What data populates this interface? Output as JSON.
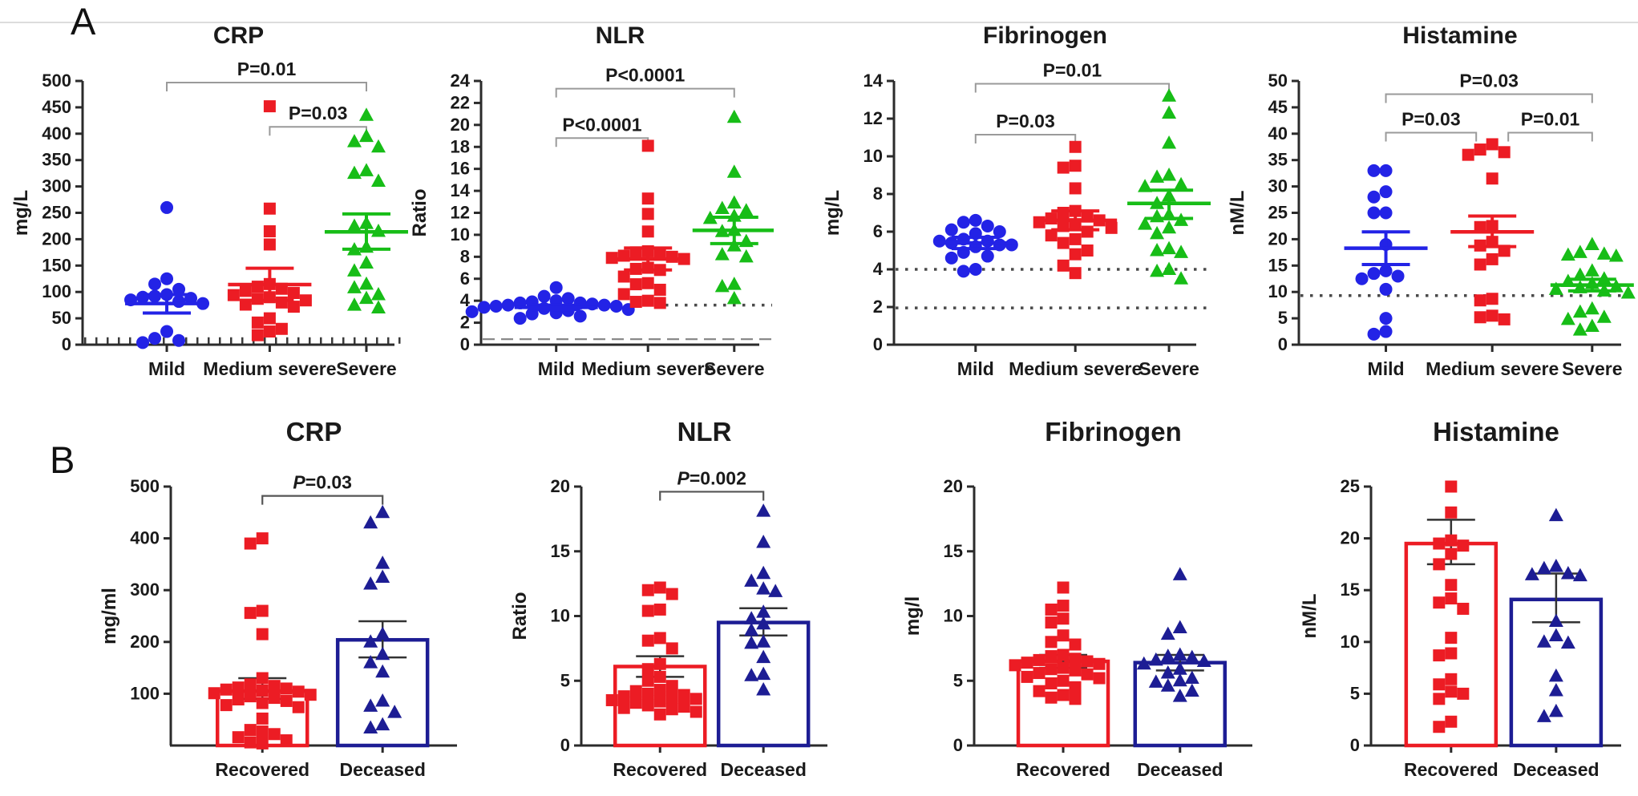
{
  "figure": {
    "panel_a_label": "A",
    "panel_b_label": "B",
    "colors": {
      "mild_blue": "#2323e6",
      "severity_red": "#ec1c24",
      "severe_green": "#17bd17",
      "deceased_navy": "#1d1d94",
      "axis_black": "#2b2b2b",
      "bracket_gray_panel_a": "#9a9a9a",
      "bracket_dark_panel_b": "#555555"
    }
  },
  "chart_data": [
    {
      "id": "a_crp",
      "panel": "A",
      "type": "scatter",
      "title": "CRP",
      "ylabel": "mg/L",
      "ylim": [
        0,
        500
      ],
      "yticks": [
        0,
        50,
        100,
        150,
        200,
        250,
        300,
        350,
        400,
        450,
        500
      ],
      "categories": [
        "Mild",
        "Medium severe",
        "Severe"
      ],
      "group_fracs": [
        0.27,
        0.6,
        0.91
      ],
      "groups": [
        {
          "label": "Mild",
          "marker": "circle",
          "color": "#2323e6",
          "mean": 78,
          "err_low": 60,
          "err_high": 95,
          "points": [
            260,
            125,
            115,
            105,
            95,
            92,
            90,
            88,
            85,
            82,
            78,
            25,
            12,
            8,
            4
          ]
        },
        {
          "label": "Medium severe",
          "marker": "square",
          "color": "#ec1c24",
          "mean": 114,
          "err_low": 84,
          "err_high": 145,
          "points": [
            452,
            258,
            215,
            190,
            115,
            110,
            106,
            102,
            98,
            94,
            90,
            87,
            84,
            80,
            76,
            72,
            50,
            42,
            30,
            25,
            18
          ]
        },
        {
          "label": "Severe",
          "marker": "triangle",
          "color": "#17bd17",
          "mean": 214,
          "err_low": 181,
          "err_high": 248,
          "points": [
            435,
            395,
            385,
            375,
            330,
            325,
            310,
            230,
            225,
            215,
            185,
            180,
            155,
            140,
            115,
            108,
            95,
            88,
            75,
            70
          ]
        }
      ],
      "ref_lines": [
        {
          "y": 8,
          "style": "ticks"
        }
      ],
      "brackets": [
        {
          "from": 0,
          "to": 2,
          "y": 497,
          "label": "P=0.01",
          "italic_p": false
        },
        {
          "from": 1,
          "to": 2,
          "y": 413,
          "label": "P=0.03",
          "italic_p": false
        }
      ]
    },
    {
      "id": "a_nlr",
      "panel": "A",
      "type": "scatter",
      "title": "NLR",
      "ylabel": "Ratio",
      "ylim": [
        0,
        24
      ],
      "yticks": [
        0,
        2,
        4,
        6,
        8,
        10,
        12,
        14,
        16,
        18,
        20,
        22,
        24
      ],
      "categories": [
        "Mild",
        "Medium severe",
        "Severe"
      ],
      "group_fracs": [
        0.27,
        0.6,
        0.91
      ],
      "groups": [
        {
          "label": "Mild",
          "marker": "circle",
          "color": "#2323e6",
          "mean": 3.4,
          "err_low": 3.2,
          "err_high": 3.6,
          "points": [
            5.2,
            4.4,
            4.2,
            4.0,
            3.9,
            3.8,
            3.8,
            3.7,
            3.6,
            3.6,
            3.5,
            3.5,
            3.4,
            3.3,
            3.2,
            3.1,
            3.0,
            2.9,
            2.8,
            2.6,
            2.4
          ]
        },
        {
          "label": "Medium severe",
          "marker": "square",
          "color": "#ec1c24",
          "mean": 7.8,
          "err_low": 6.8,
          "err_high": 8.8,
          "points": [
            18.1,
            13.3,
            11.9,
            10.3,
            8.5,
            8.4,
            8.2,
            8.1,
            8.0,
            7.9,
            7.8,
            7.0,
            6.9,
            6.8,
            6.2,
            5.6,
            5.5,
            5.0,
            4.6,
            4.0,
            3.9,
            3.8
          ]
        },
        {
          "label": "Severe",
          "marker": "triangle",
          "color": "#17bd17",
          "mean": 10.4,
          "err_low": 9.2,
          "err_high": 11.6,
          "points": [
            20.7,
            15.7,
            12.9,
            12.4,
            12.2,
            11.7,
            11.5,
            10.4,
            10.3,
            9.4,
            9.0,
            8.2,
            8.0,
            5.5,
            5.3,
            4.2
          ]
        }
      ],
      "ref_lines": [
        {
          "y": 3.6,
          "style": "dotted"
        },
        {
          "y": 0.5,
          "style": "dashed"
        }
      ],
      "brackets": [
        {
          "from": 0,
          "to": 2,
          "y": 23.3,
          "label": "P<0.0001",
          "italic_p": false
        },
        {
          "from": 0,
          "to": 1,
          "y": 18.8,
          "label": "P<0.0001",
          "italic_p": false
        }
      ]
    },
    {
      "id": "a_fib",
      "panel": "A",
      "type": "scatter",
      "title": "Fibrinogen",
      "ylabel": "mg/L",
      "ylim": [
        0,
        14
      ],
      "yticks": [
        0,
        2,
        4,
        6,
        8,
        10,
        12,
        14
      ],
      "categories": [
        "Mild",
        "Medium severe",
        "Severe"
      ],
      "group_fracs": [
        0.27,
        0.6,
        0.91
      ],
      "groups": [
        {
          "label": "Mild",
          "marker": "circle",
          "color": "#2323e6",
          "mean": 5.4,
          "err_low": 5.1,
          "err_high": 5.7,
          "points": [
            6.6,
            6.5,
            6.3,
            6.1,
            6.0,
            5.9,
            5.6,
            5.5,
            5.5,
            5.4,
            5.3,
            5.3,
            5.2,
            4.9,
            4.7,
            4.6,
            4.0,
            3.9
          ]
        },
        {
          "label": "Medium severe",
          "marker": "square",
          "color": "#ec1c24",
          "mean": 6.6,
          "err_low": 6.1,
          "err_high": 7.1,
          "points": [
            10.5,
            9.5,
            9.4,
            8.3,
            7.1,
            7.0,
            6.8,
            6.7,
            6.6,
            6.5,
            6.4,
            6.3,
            6.2,
            6.0,
            5.8,
            5.6,
            5.4,
            5.0,
            4.8,
            4.2,
            3.8
          ]
        },
        {
          "label": "Severe",
          "marker": "triangle",
          "color": "#17bd17",
          "mean": 7.5,
          "err_low": 6.7,
          "err_high": 8.2,
          "points": [
            13.2,
            12.3,
            10.7,
            9.0,
            8.9,
            8.5,
            8.4,
            7.9,
            7.5,
            6.9,
            6.8,
            6.6,
            6.4,
            6.2,
            5.9,
            5.1,
            5.0,
            4.9,
            4.0,
            3.9,
            3.5
          ]
        }
      ],
      "ref_lines": [
        {
          "y": 4.0,
          "style": "dotted"
        },
        {
          "y": 1.95,
          "style": "dotted"
        }
      ],
      "brackets": [
        {
          "from": 0,
          "to": 2,
          "y": 13.85,
          "label": "P=0.01",
          "italic_p": false
        },
        {
          "from": 0,
          "to": 1,
          "y": 11.15,
          "label": "P=0.03",
          "italic_p": false
        }
      ]
    },
    {
      "id": "a_his",
      "panel": "A",
      "type": "scatter",
      "title": "Histamine",
      "ylabel": "nM/L",
      "ylim": [
        0,
        50
      ],
      "yticks": [
        0,
        5,
        10,
        15,
        20,
        25,
        30,
        35,
        40,
        45,
        50
      ],
      "categories": [
        "Mild",
        "Medium severe",
        "Severe"
      ],
      "group_fracs": [
        0.27,
        0.6,
        0.91
      ],
      "groups": [
        {
          "label": "Mild",
          "marker": "circle",
          "color": "#2323e6",
          "mean": 18.3,
          "err_low": 15.2,
          "err_high": 21.4,
          "points": [
            33,
            33,
            29,
            28,
            25,
            25,
            19,
            14,
            13.5,
            13,
            12.5,
            10.5,
            5,
            2.5,
            2
          ]
        },
        {
          "label": "Medium severe",
          "marker": "square",
          "color": "#ec1c24",
          "mean": 21.4,
          "err_low": 18.6,
          "err_high": 24.4,
          "points": [
            38,
            37,
            36.5,
            36,
            31.5,
            22.5,
            22.3,
            19.5,
            18.8,
            17.8,
            16.2,
            15.2,
            8.7,
            8.4,
            5.5,
            5.2,
            4.8
          ]
        },
        {
          "label": "Severe",
          "marker": "triangle",
          "color": "#17bd17",
          "mean": 11.3,
          "err_low": 10.2,
          "err_high": 12.4,
          "points": [
            19,
            17.5,
            17.2,
            17,
            16.8,
            14,
            13.2,
            12.5,
            12,
            11.6,
            11,
            10.8,
            10.5,
            10.2,
            9.8,
            6.8,
            6.2,
            5.2,
            4.8,
            3.5,
            2.8
          ]
        }
      ],
      "ref_lines": [
        {
          "y": 9.3,
          "style": "dotted"
        }
      ],
      "brackets": [
        {
          "from": 0,
          "to": 2,
          "y": 47.5,
          "label": "P=0.03",
          "italic_p": false
        },
        {
          "from": 0,
          "to": 1,
          "y": 40.2,
          "label": "P=0.03",
          "italic_p": false,
          "pad_to": -20
        },
        {
          "from": 1,
          "to": 2,
          "y": 40.2,
          "label": "P=0.01",
          "italic_p": false,
          "pad_from": 20
        }
      ]
    },
    {
      "id": "b_crp",
      "panel": "B",
      "type": "bar",
      "title": "CRP",
      "ylabel": "mg/ml",
      "ylim": [
        0,
        500
      ],
      "yticks": [
        100,
        200,
        300,
        400,
        500
      ],
      "categories": [
        "Recovered",
        "Deceased"
      ],
      "group_fracs": [
        0.32,
        0.74
      ],
      "groups": [
        {
          "label": "Recovered",
          "marker": "square",
          "color": "#ec1c24",
          "mean": 105,
          "err_low": 90,
          "err_high": 130,
          "points": [
            400,
            390,
            260,
            256,
            215,
            130,
            118,
            115,
            112,
            110,
            108,
            106,
            104,
            101,
            98,
            95,
            92,
            89,
            86,
            82,
            78,
            74,
            52,
            30,
            27,
            22,
            16,
            10,
            6,
            4
          ]
        },
        {
          "label": "Deceased",
          "marker": "triangle",
          "color": "#1d1d94",
          "mean": 204,
          "err_low": 170,
          "err_high": 240,
          "points": [
            450,
            430,
            352,
            325,
            312,
            215,
            200,
            176,
            160,
            142,
            86,
            76,
            64,
            40,
            34
          ]
        }
      ],
      "ref_lines": [],
      "brackets": [
        {
          "from": 0,
          "to": 1,
          "y": 482,
          "label": "P=0.03",
          "italic_p": true
        }
      ]
    },
    {
      "id": "b_nlr",
      "panel": "B",
      "type": "bar",
      "title": "NLR",
      "ylabel": "Ratio",
      "ylim": [
        0,
        20
      ],
      "yticks": [
        0,
        5,
        10,
        15,
        20
      ],
      "categories": [
        "Recovered",
        "Deceased"
      ],
      "group_fracs": [
        0.32,
        0.74
      ],
      "groups": [
        {
          "label": "Recovered",
          "marker": "square",
          "color": "#ec1c24",
          "mean": 6.1,
          "err_low": 5.3,
          "err_high": 6.9,
          "points": [
            12.2,
            12.0,
            11.7,
            10.5,
            10.4,
            8.3,
            8.1,
            7.5,
            6.3,
            5.9,
            5.3,
            5.0,
            4.6,
            4.3,
            4.2,
            4.0,
            3.9,
            3.8,
            3.7,
            3.6,
            3.5,
            3.4,
            3.3,
            3.1,
            3.0,
            2.9,
            2.8,
            2.6,
            2.4
          ]
        },
        {
          "label": "Deceased",
          "marker": "triangle",
          "color": "#1d1d94",
          "mean": 9.5,
          "err_low": 8.5,
          "err_high": 10.6,
          "points": [
            18.1,
            15.7,
            13.3,
            12.7,
            12.1,
            11.9,
            10.3,
            9.8,
            9.4,
            8.9,
            8.0,
            7.9,
            6.8,
            5.5,
            5.4,
            4.3
          ]
        }
      ],
      "ref_lines": [],
      "brackets": [
        {
          "from": 0,
          "to": 1,
          "y": 19.6,
          "label": "P=0.002",
          "italic_p": true
        }
      ]
    },
    {
      "id": "b_fib",
      "panel": "B",
      "type": "bar",
      "title": "Fibrinogen",
      "ylabel": "mg/l",
      "ylim": [
        0,
        20
      ],
      "yticks": [
        0,
        5,
        10,
        15,
        20
      ],
      "categories": [
        "Recovered",
        "Deceased"
      ],
      "group_fracs": [
        0.32,
        0.74
      ],
      "groups": [
        {
          "label": "Recovered",
          "marker": "square",
          "color": "#ec1c24",
          "mean": 6.5,
          "err_low": 6.0,
          "err_high": 7.0,
          "points": [
            12.2,
            10.8,
            10.5,
            9.8,
            9.5,
            8.5,
            8.0,
            7.8,
            7.0,
            6.9,
            6.7,
            6.6,
            6.5,
            6.4,
            6.3,
            6.2,
            6.0,
            5.9,
            5.8,
            5.6,
            5.5,
            5.3,
            5.2,
            5.0,
            4.8,
            4.5,
            4.2,
            3.9,
            3.7,
            3.6
          ]
        },
        {
          "label": "Deceased",
          "marker": "triangle",
          "color": "#1d1d94",
          "mean": 6.4,
          "err_low": 5.8,
          "err_high": 7.0,
          "points": [
            13.2,
            9.1,
            8.6,
            7.0,
            6.9,
            6.8,
            6.6,
            6.5,
            6.3,
            5.9,
            5.6,
            5.2,
            5.0,
            4.9,
            4.6,
            4.2,
            3.8
          ]
        }
      ],
      "ref_lines": [],
      "brackets": []
    },
    {
      "id": "b_his",
      "panel": "B",
      "type": "bar",
      "title": "Histamine",
      "ylabel": "nM/L",
      "ylim": [
        0,
        25
      ],
      "yticks": [
        0,
        5,
        10,
        15,
        20,
        25
      ],
      "categories": [
        "Recovered",
        "Deceased"
      ],
      "group_fracs": [
        0.32,
        0.74
      ],
      "groups": [
        {
          "label": "Recovered",
          "marker": "square",
          "color": "#ec1c24",
          "mean": 19.5,
          "err_low": 17.5,
          "err_high": 21.8,
          "points": [
            25,
            22.5,
            19.8,
            19.5,
            19.3,
            18.5,
            17.5,
            15.5,
            14.2,
            13.8,
            13.2,
            10.4,
            8.9,
            8.7,
            6.4,
            5.9,
            5.2,
            5.0,
            4.5,
            2.3,
            1.8
          ]
        },
        {
          "label": "Deceased",
          "marker": "triangle",
          "color": "#1d1d94",
          "mean": 14.1,
          "err_low": 11.9,
          "err_high": 16.6,
          "points": [
            22.2,
            17.3,
            17.1,
            16.6,
            16.5,
            16.4,
            12.0,
            10.6,
            10.0,
            9.9,
            6.7,
            5.3,
            3.3,
            2.8
          ]
        }
      ],
      "ref_lines": [],
      "brackets": []
    }
  ]
}
